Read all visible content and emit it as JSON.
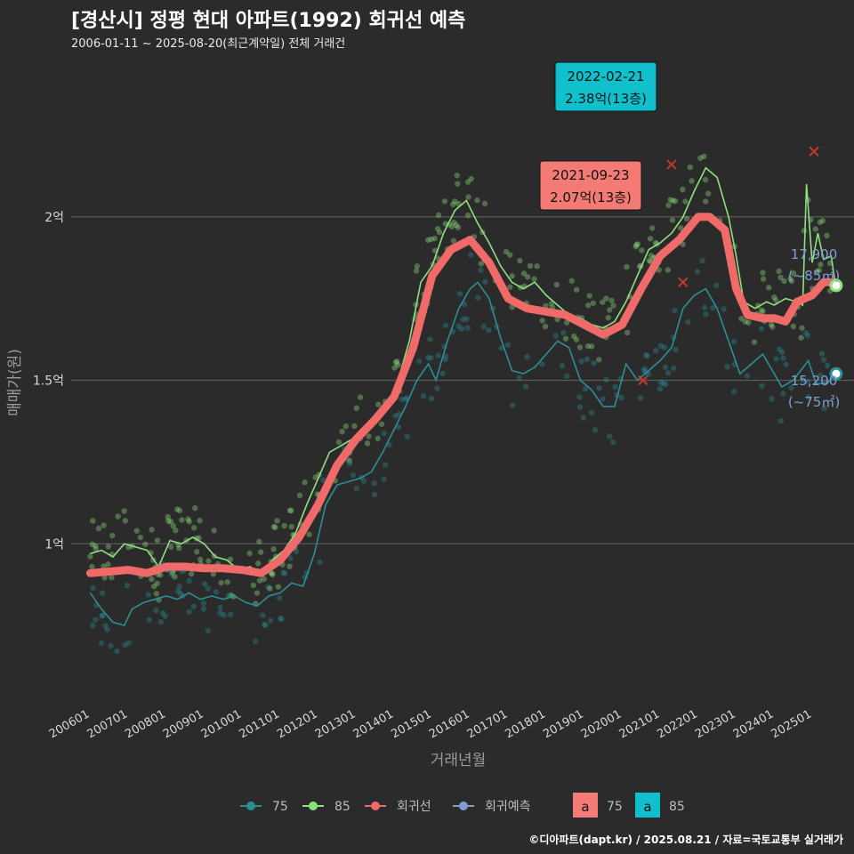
{
  "title": "[경산시] 정평 현대 아파트(1992) 회귀선 예측",
  "subtitle": "2006-01-11 ~ 2025-08-20(최근계약일) 전체 거래건",
  "footer": "©디아파트(dapt.kr) / 2025.08.21 / 자료=국토교통부 실거래가",
  "colors": {
    "background": "#2b2b2b",
    "grid": "#5a5a5a",
    "s75": "#2a8f95",
    "s85": "#8ee07e",
    "regression": "#f06a6a",
    "forecast": "#7f9fd0",
    "callout_75": "#f47b75",
    "callout_85": "#10c0cc"
  },
  "chart_data": {
    "type": "line",
    "xlabel": "거래년월",
    "ylabel": "매매가(원)",
    "x_ticks": [
      "200601",
      "200701",
      "200801",
      "200901",
      "201001",
      "201101",
      "201201",
      "201301",
      "201401",
      "201501",
      "201601",
      "201701",
      "201801",
      "201901",
      "202001",
      "202101",
      "202201",
      "202301",
      "202401",
      "202501"
    ],
    "y_ticks": [
      {
        "value": 1.0,
        "label": "1억"
      },
      {
        "value": 1.5,
        "label": "1.5억"
      },
      {
        "value": 2.0,
        "label": "2억"
      }
    ],
    "xlim": [
      2005.5,
      2026.1
    ],
    "ylim": [
      0.5,
      2.5
    ],
    "series": [
      {
        "name": "75",
        "color": "#2a8f95",
        "points": [
          [
            2006.0,
            0.85
          ],
          [
            2006.3,
            0.8
          ],
          [
            2006.6,
            0.76
          ],
          [
            2006.9,
            0.75
          ],
          [
            2007.1,
            0.8
          ],
          [
            2007.4,
            0.82
          ],
          [
            2007.7,
            0.83
          ],
          [
            2008.0,
            0.84
          ],
          [
            2008.3,
            0.83
          ],
          [
            2008.6,
            0.85
          ],
          [
            2008.9,
            0.83
          ],
          [
            2009.2,
            0.84
          ],
          [
            2009.5,
            0.83
          ],
          [
            2009.8,
            0.84
          ],
          [
            2010.1,
            0.82
          ],
          [
            2010.4,
            0.81
          ],
          [
            2010.7,
            0.84
          ],
          [
            2011.0,
            0.85
          ],
          [
            2011.3,
            0.88
          ],
          [
            2011.6,
            0.87
          ],
          [
            2011.9,
            0.97
          ],
          [
            2012.2,
            1.12
          ],
          [
            2012.5,
            1.18
          ],
          [
            2012.8,
            1.19
          ],
          [
            2013.1,
            1.2
          ],
          [
            2013.4,
            1.22
          ],
          [
            2013.7,
            1.28
          ],
          [
            2014.0,
            1.35
          ],
          [
            2014.3,
            1.42
          ],
          [
            2014.6,
            1.5
          ],
          [
            2014.9,
            1.55
          ],
          [
            2015.1,
            1.5
          ],
          [
            2015.4,
            1.62
          ],
          [
            2015.7,
            1.72
          ],
          [
            2016.0,
            1.78
          ],
          [
            2016.2,
            1.8
          ],
          [
            2016.5,
            1.75
          ],
          [
            2016.8,
            1.63
          ],
          [
            2017.1,
            1.53
          ],
          [
            2017.4,
            1.52
          ],
          [
            2017.7,
            1.54
          ],
          [
            2018.0,
            1.58
          ],
          [
            2018.3,
            1.62
          ],
          [
            2018.6,
            1.6
          ],
          [
            2018.9,
            1.5
          ],
          [
            2019.2,
            1.47
          ],
          [
            2019.5,
            1.42
          ],
          [
            2019.8,
            1.42
          ],
          [
            2020.1,
            1.55
          ],
          [
            2020.4,
            1.5
          ],
          [
            2020.7,
            1.53
          ],
          [
            2021.0,
            1.56
          ],
          [
            2021.3,
            1.6
          ],
          [
            2021.6,
            1.72
          ],
          [
            2021.9,
            1.76
          ],
          [
            2022.2,
            1.78
          ],
          [
            2022.5,
            1.72
          ],
          [
            2022.8,
            1.62
          ],
          [
            2023.1,
            1.52
          ],
          [
            2023.4,
            1.55
          ],
          [
            2023.7,
            1.58
          ],
          [
            2024.0,
            1.52
          ],
          [
            2024.2,
            1.48
          ],
          [
            2024.5,
            1.5
          ],
          [
            2024.9,
            1.56
          ],
          [
            2025.1,
            1.49
          ],
          [
            2025.4,
            1.49
          ],
          [
            2025.6,
            1.52
          ]
        ]
      },
      {
        "name": "85",
        "color": "#8ee07e",
        "points": [
          [
            2006.0,
            0.97
          ],
          [
            2006.3,
            0.98
          ],
          [
            2006.6,
            0.96
          ],
          [
            2006.9,
            1.0
          ],
          [
            2007.2,
            0.99
          ],
          [
            2007.5,
            0.98
          ],
          [
            2007.8,
            0.93
          ],
          [
            2008.1,
            1.01
          ],
          [
            2008.4,
            1.0
          ],
          [
            2008.7,
            1.02
          ],
          [
            2009.0,
            1.0
          ],
          [
            2009.3,
            0.96
          ],
          [
            2009.6,
            0.95
          ],
          [
            2009.9,
            0.92
          ],
          [
            2010.2,
            0.93
          ],
          [
            2010.5,
            0.91
          ],
          [
            2010.8,
            0.95
          ],
          [
            2011.1,
            0.98
          ],
          [
            2011.4,
            1.03
          ],
          [
            2011.7,
            1.12
          ],
          [
            2012.0,
            1.2
          ],
          [
            2012.3,
            1.28
          ],
          [
            2012.6,
            1.3
          ],
          [
            2012.9,
            1.32
          ],
          [
            2013.2,
            1.35
          ],
          [
            2013.5,
            1.38
          ],
          [
            2013.8,
            1.42
          ],
          [
            2014.1,
            1.5
          ],
          [
            2014.4,
            1.62
          ],
          [
            2014.7,
            1.8
          ],
          [
            2015.0,
            1.85
          ],
          [
            2015.3,
            1.95
          ],
          [
            2015.6,
            2.02
          ],
          [
            2015.9,
            2.05
          ],
          [
            2016.2,
            1.98
          ],
          [
            2016.5,
            1.92
          ],
          [
            2016.8,
            1.85
          ],
          [
            2017.1,
            1.8
          ],
          [
            2017.4,
            1.78
          ],
          [
            2017.7,
            1.8
          ],
          [
            2018.0,
            1.76
          ],
          [
            2018.3,
            1.73
          ],
          [
            2018.6,
            1.7
          ],
          [
            2018.9,
            1.69
          ],
          [
            2019.2,
            1.67
          ],
          [
            2019.5,
            1.66
          ],
          [
            2019.8,
            1.68
          ],
          [
            2020.1,
            1.74
          ],
          [
            2020.4,
            1.82
          ],
          [
            2020.7,
            1.9
          ],
          [
            2021.0,
            1.92
          ],
          [
            2021.3,
            1.95
          ],
          [
            2021.6,
            2.0
          ],
          [
            2021.9,
            2.08
          ],
          [
            2022.2,
            2.15
          ],
          [
            2022.5,
            2.12
          ],
          [
            2022.8,
            2.0
          ],
          [
            2023.0,
            1.88
          ],
          [
            2023.2,
            1.74
          ],
          [
            2023.5,
            1.72
          ],
          [
            2023.8,
            1.74
          ],
          [
            2024.0,
            1.73
          ],
          [
            2024.3,
            1.75
          ],
          [
            2024.6,
            1.74
          ],
          [
            2024.75,
            1.73
          ],
          [
            2024.85,
            2.1
          ],
          [
            2025.0,
            1.86
          ],
          [
            2025.15,
            1.95
          ],
          [
            2025.3,
            1.87
          ],
          [
            2025.5,
            1.88
          ],
          [
            2025.6,
            1.8
          ]
        ]
      },
      {
        "name": "회귀선",
        "color": "#f06a6a",
        "points": [
          [
            2006.0,
            0.91
          ],
          [
            2006.5,
            0.915
          ],
          [
            2007.0,
            0.92
          ],
          [
            2007.5,
            0.91
          ],
          [
            2008.0,
            0.93
          ],
          [
            2008.5,
            0.93
          ],
          [
            2009.0,
            0.925
          ],
          [
            2009.5,
            0.925
          ],
          [
            2010.0,
            0.92
          ],
          [
            2010.5,
            0.91
          ],
          [
            2011.0,
            0.95
          ],
          [
            2011.5,
            1.02
          ],
          [
            2012.0,
            1.12
          ],
          [
            2012.5,
            1.24
          ],
          [
            2013.0,
            1.32
          ],
          [
            2013.5,
            1.38
          ],
          [
            2014.0,
            1.45
          ],
          [
            2014.5,
            1.6
          ],
          [
            2015.0,
            1.82
          ],
          [
            2015.5,
            1.9
          ],
          [
            2016.0,
            1.93
          ],
          [
            2016.5,
            1.86
          ],
          [
            2017.0,
            1.75
          ],
          [
            2017.5,
            1.72
          ],
          [
            2018.0,
            1.71
          ],
          [
            2018.5,
            1.7
          ],
          [
            2019.0,
            1.67
          ],
          [
            2019.5,
            1.64
          ],
          [
            2020.0,
            1.67
          ],
          [
            2020.5,
            1.78
          ],
          [
            2021.0,
            1.88
          ],
          [
            2021.5,
            1.93
          ],
          [
            2022.0,
            2.0
          ],
          [
            2022.3,
            2.0
          ],
          [
            2022.7,
            1.96
          ],
          [
            2023.0,
            1.78
          ],
          [
            2023.3,
            1.7
          ],
          [
            2023.7,
            1.69
          ],
          [
            2024.0,
            1.69
          ],
          [
            2024.3,
            1.68
          ],
          [
            2024.6,
            1.74
          ],
          [
            2025.0,
            1.76
          ],
          [
            2025.3,
            1.8
          ],
          [
            2025.6,
            1.8
          ]
        ]
      }
    ],
    "endpoints": [
      {
        "series": "85",
        "x": 2025.63,
        "y": 1.79,
        "value_label": "17,900",
        "area_label": "(~85㎡)"
      },
      {
        "series": "75",
        "x": 2025.63,
        "y": 1.52,
        "value_label": "15,200",
        "area_label": "(~75㎡)"
      }
    ],
    "cancelled_marks": [
      [
        2020.55,
        1.5
      ],
      [
        2021.6,
        1.8
      ],
      [
        2025.05,
        2.2
      ],
      [
        2021.3,
        2.16
      ]
    ],
    "callouts": [
      {
        "date": "2022-02-21",
        "price": "2.38억(13층)",
        "series": "85",
        "x": 2021.8,
        "y": 2.38
      },
      {
        "date": "2021-09-23",
        "price": "2.07억(13층)",
        "series": "75",
        "x": 2021.3,
        "y": 2.07
      }
    ],
    "legend": {
      "position": "bottom",
      "lines": [
        {
          "label": "75",
          "color": "#2a8f95"
        },
        {
          "label": "85",
          "color": "#8ee07e"
        },
        {
          "label": "회귀선",
          "color": "#f06a6a"
        },
        {
          "label": "회귀예측",
          "color": "#7f9fd0"
        }
      ],
      "boxes": [
        {
          "glyph": "a",
          "label": "75",
          "color": "#f47b75"
        },
        {
          "glyph": "a",
          "label": "85",
          "color": "#10c0cc"
        }
      ]
    }
  }
}
